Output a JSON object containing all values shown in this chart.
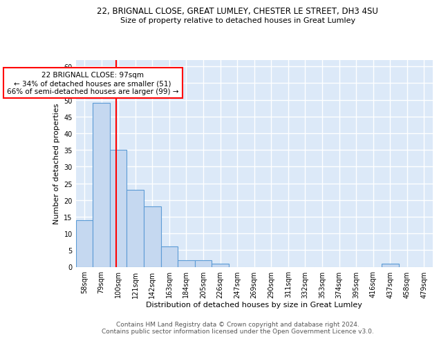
{
  "title": "22, BRIGNALL CLOSE, GREAT LUMLEY, CHESTER LE STREET, DH3 4SU",
  "subtitle": "Size of property relative to detached houses in Great Lumley",
  "xlabel": "Distribution of detached houses by size in Great Lumley",
  "ylabel": "Number of detached properties",
  "categories": [
    "58sqm",
    "79sqm",
    "100sqm",
    "121sqm",
    "142sqm",
    "163sqm",
    "184sqm",
    "205sqm",
    "226sqm",
    "247sqm",
    "269sqm",
    "290sqm",
    "311sqm",
    "332sqm",
    "353sqm",
    "374sqm",
    "395sqm",
    "416sqm",
    "437sqm",
    "458sqm",
    "479sqm"
  ],
  "values": [
    14,
    49,
    35,
    23,
    18,
    6,
    2,
    2,
    1,
    0,
    0,
    0,
    0,
    0,
    0,
    0,
    0,
    0,
    1,
    0,
    0
  ],
  "bar_color": "#c5d8f0",
  "bar_edge_color": "#5b9bd5",
  "annotation_text": "22 BRIGNALL CLOSE: 97sqm\n← 34% of detached houses are smaller (51)\n66% of semi-detached houses are larger (99) →",
  "annotation_box_color": "white",
  "annotation_box_edge_color": "red",
  "red_line_color": "red",
  "ylim": [
    0,
    62
  ],
  "yticks": [
    0,
    5,
    10,
    15,
    20,
    25,
    30,
    35,
    40,
    45,
    50,
    55,
    60
  ],
  "footer_text": "Contains HM Land Registry data © Crown copyright and database right 2024.\nContains public sector information licensed under the Open Government Licence v3.0.",
  "background_color": "#dce9f8",
  "grid_color": "white",
  "title_fontsize": 8.5,
  "subtitle_fontsize": 8,
  "xlabel_fontsize": 8,
  "ylabel_fontsize": 8,
  "tick_fontsize": 7,
  "footer_fontsize": 6.5,
  "annotation_fontsize": 7.5
}
